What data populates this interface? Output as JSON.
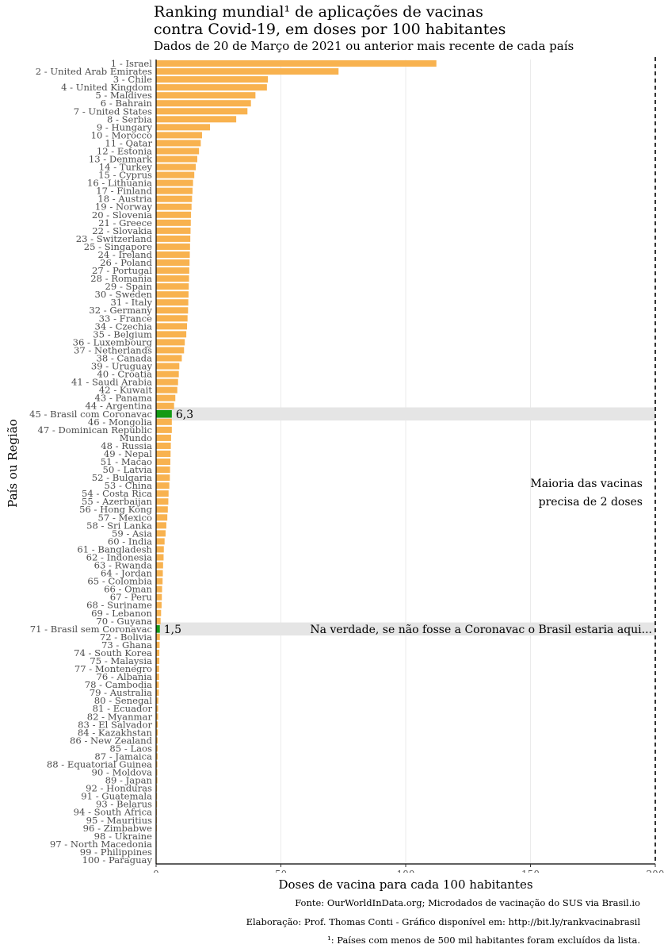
{
  "title_line1": "Ranking mundial¹ de aplicações de vacinas",
  "title_line2": "contra Covid-19, em doses por 100 habitantes",
  "subtitle": "Dados de 20 de Março de 2021 ou anterior mais recente de cada país",
  "captions": {
    "source": "Fonte: OurWorldInData.org; Microdados de vacinação do SUS via Brasil.io",
    "author": "Elaboração: Prof. Thomas Conti - Gráfico disponível em: http://bit.ly/rankvacinabrasil",
    "note": "¹: Países com menos de 500 mil habitantes foram excluídos da lista."
  },
  "colors": {
    "bar": "#F8B24F",
    "highlight_bar": "#139A13",
    "highlight_band": "#E5E5E5",
    "grid": "#EBEBEB",
    "axis": "#000000"
  },
  "chart_data": {
    "type": "bar",
    "orientation": "horizontal",
    "xlabel": "Doses de vacina para cada 100 habitantes",
    "ylabel": "País ou Região",
    "xlim": [
      0,
      200
    ],
    "xticks": [
      0,
      50,
      100,
      150,
      200
    ],
    "grid": true,
    "reference_line": {
      "x": 200,
      "style": "dashed"
    },
    "categories": [
      "1 - Israel",
      "2 - United Arab Emirates",
      "3 - Chile",
      "4 - United Kingdom",
      "5 - Maldives",
      "6 - Bahrain",
      "7 - United States",
      "8 - Serbia",
      "9 - Hungary",
      "10 - Morocco",
      "11 - Qatar",
      "12 - Estonia",
      "13 - Denmark",
      "14 - Turkey",
      "15 - Cyprus",
      "16 - Lithuania",
      "17 - Finland",
      "18 - Austria",
      "19 - Norway",
      "20 - Slovenia",
      "21 - Greece",
      "22 - Slovakia",
      "23 - Switzerland",
      "25 - Singapore",
      "24 - Ireland",
      "26 - Poland",
      "27 - Portugal",
      "28 - Romania",
      "29 - Spain",
      "30 - Sweden",
      "31 - Italy",
      "32 - Germany",
      "33 - France",
      "34 - Czechia",
      "35 - Belgium",
      "36 - Luxembourg",
      "37 - Netherlands",
      "38 - Canada",
      "39 - Uruguay",
      "40 - Croatia",
      "41 - Saudi Arabia",
      "42 - Kuwait",
      "43 - Panama",
      "44 - Argentina",
      "45 - Brasil com Coronavac",
      "46 - Mongolia",
      "47 - Dominican Republic",
      "Mundo",
      "48 - Russia",
      "49 - Nepal",
      "51 - Macao",
      "50 - Latvia",
      "52 - Bulgaria",
      "53 - China",
      "54 - Costa Rica",
      "55 - Azerbaijan",
      "56 - Hong Kong",
      "57 - Mexico",
      "58 - Sri Lanka",
      "59 - Asia",
      "60 - India",
      "61 - Bangladesh",
      "62 - Indonesia",
      "63 - Rwanda",
      "64 - Jordan",
      "65 - Colombia",
      "66 - Oman",
      "67 - Peru",
      "68 - Suriname",
      "69 - Lebanon",
      "70 - Guyana",
      "71 - Brasil sem Coronavac",
      "72 - Bolivia",
      "73 - Ghana",
      "74 - South Korea",
      "75 - Malaysia",
      "77 - Montenegro",
      "76 - Albania",
      "78 - Cambodia",
      "79 - Australia",
      "80 - Senegal",
      "81 - Ecuador",
      "82 - Myanmar",
      "83 - El Salvador",
      "84 - Kazakhstan",
      "86 - New Zealand",
      "85 - Laos",
      "87 - Jamaica",
      "88 - Equatorial Guinea",
      "90 - Moldova",
      "89 - Japan",
      "92 - Honduras",
      "91 - Guatemala",
      "93 - Belarus",
      "94 - South Africa",
      "95 - Mauritius",
      "96 - Zimbabwe",
      "98 - Ukraine",
      "97 - North Macedonia",
      "99 - Philippines",
      "100 - Paraguay"
    ],
    "values": [
      112.3,
      73.1,
      44.8,
      44.4,
      39.8,
      38.0,
      36.6,
      32.1,
      21.6,
      18.4,
      17.9,
      17.2,
      16.5,
      15.9,
      15.3,
      14.8,
      14.6,
      14.4,
      14.2,
      14.0,
      13.9,
      13.8,
      13.7,
      13.6,
      13.5,
      13.4,
      13.3,
      13.2,
      13.1,
      13.0,
      12.9,
      12.8,
      12.6,
      12.4,
      12.1,
      11.5,
      11.2,
      10.3,
      9.3,
      9.1,
      8.8,
      8.5,
      7.7,
      7.2,
      6.3,
      6.3,
      6.3,
      6.0,
      5.9,
      5.8,
      5.7,
      5.6,
      5.5,
      5.3,
      5.0,
      4.9,
      4.7,
      4.5,
      4.1,
      3.8,
      3.4,
      3.1,
      3.0,
      2.8,
      2.7,
      2.6,
      2.4,
      2.3,
      2.2,
      2.0,
      1.8,
      1.5,
      1.5,
      1.4,
      1.3,
      1.3,
      1.2,
      1.2,
      1.1,
      1.1,
      0.9,
      0.8,
      0.8,
      0.7,
      0.7,
      0.6,
      0.6,
      0.6,
      0.5,
      0.5,
      0.5,
      0.4,
      0.4,
      0.4,
      0.3,
      0.3,
      0.3,
      0.2,
      0.2,
      0.1,
      0.1
    ],
    "highlights": [
      {
        "category": "45 - Brasil com Coronavac",
        "value_label": "6,3"
      },
      {
        "category": "71 - Brasil sem Coronavac",
        "value_label": "1,5",
        "annotation": "Na verdade, se não fosse a Coronavac o Brasil estaria aqui..."
      }
    ],
    "annotation": [
      "Maioria das vacinas",
      "precisa de 2 doses"
    ]
  }
}
